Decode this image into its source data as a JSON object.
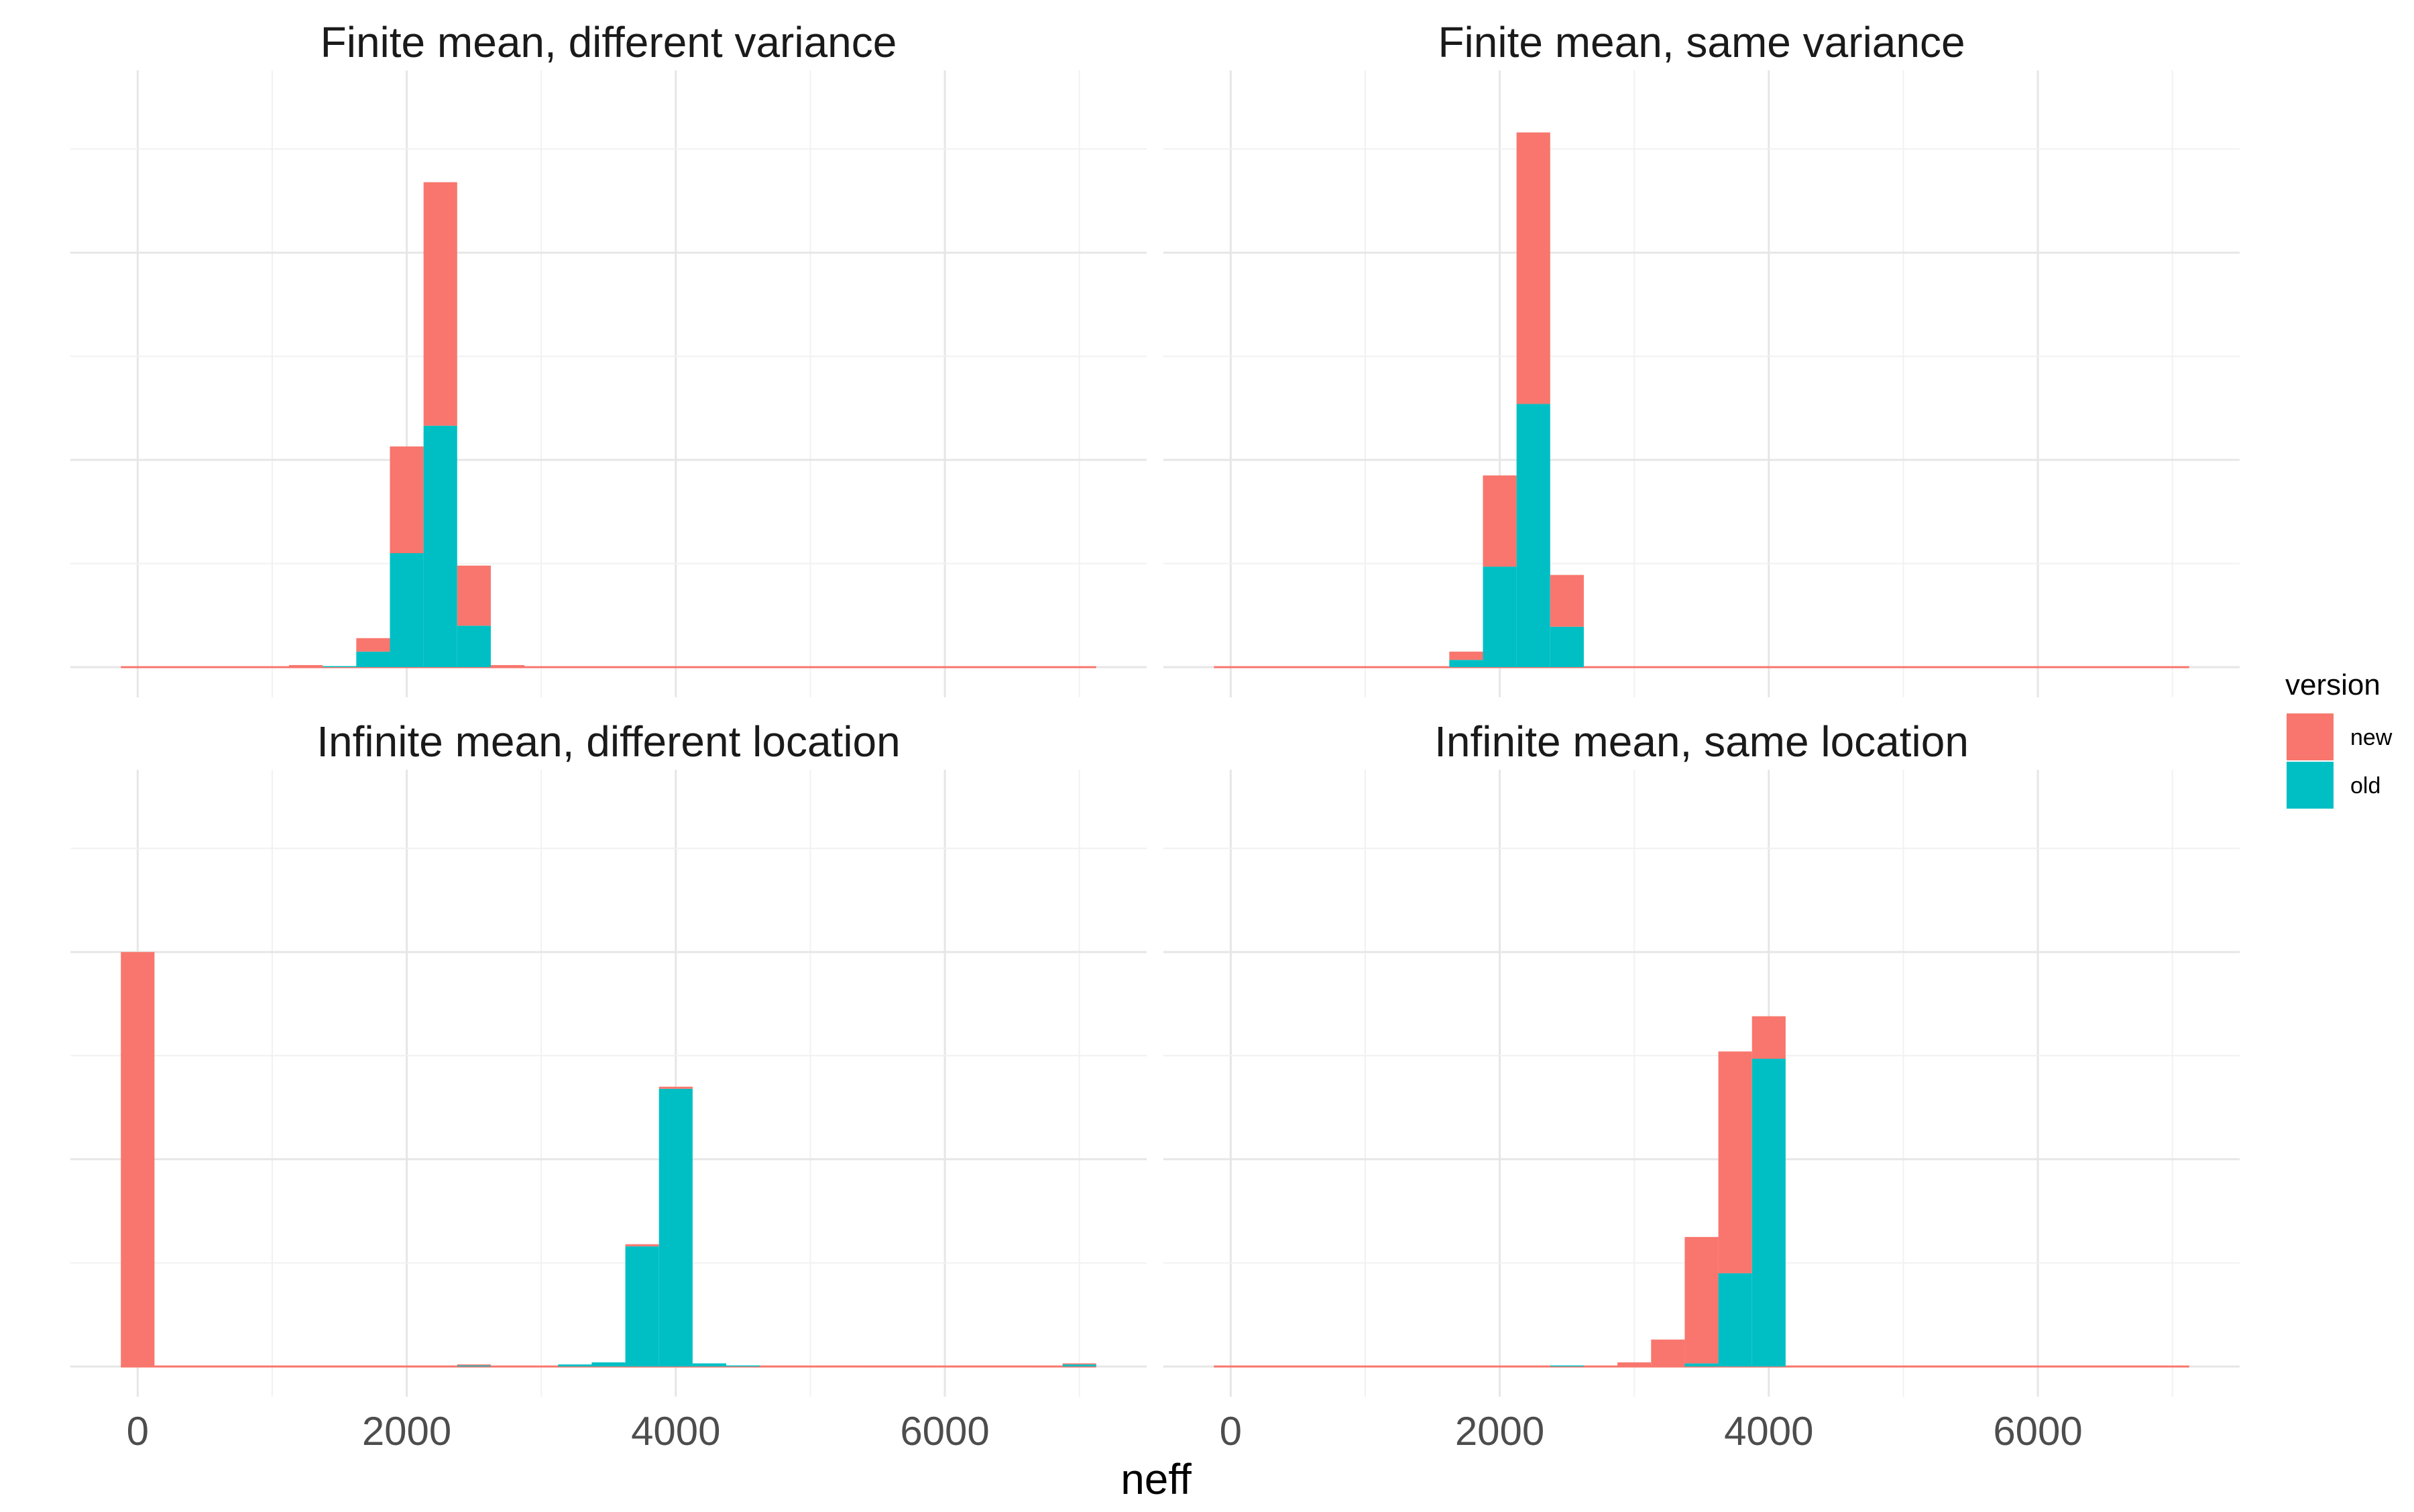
{
  "chart_data": {
    "type": "bar",
    "subtype": "stacked-histogram-facets",
    "xlabel": "neff",
    "ylabel": "",
    "xlim": [
      -500,
      7500
    ],
    "x_ticks": [
      0,
      2000,
      4000,
      6000
    ],
    "grid": true,
    "legend": {
      "title": "version",
      "placement": "right",
      "entries": [
        {
          "name": "new",
          "color": "#F8766D"
        },
        {
          "name": "old",
          "color": "#00BFC4"
        }
      ]
    },
    "bin_width": 250,
    "panels": [
      {
        "title": "Finite mean, different variance",
        "ylim": [
          0,
          0.55
        ],
        "bins": [
          {
            "x": 1250,
            "new": 0.002,
            "old": 0.0
          },
          {
            "x": 1500,
            "new": 0.0,
            "old": 0.001
          },
          {
            "x": 1750,
            "new": 0.013,
            "old": 0.015
          },
          {
            "x": 2000,
            "new": 0.103,
            "old": 0.11
          },
          {
            "x": 2250,
            "new": 0.235,
            "old": 0.233
          },
          {
            "x": 2500,
            "new": 0.058,
            "old": 0.04
          },
          {
            "x": 2750,
            "new": 0.002,
            "old": 0.0
          }
        ]
      },
      {
        "title": "Finite mean, same variance",
        "ylim": [
          0,
          0.55
        ],
        "bins": [
          {
            "x": 1750,
            "new": 0.008,
            "old": 0.007
          },
          {
            "x": 2000,
            "new": 0.088,
            "old": 0.097
          },
          {
            "x": 2250,
            "new": 0.262,
            "old": 0.254
          },
          {
            "x": 2500,
            "new": 0.05,
            "old": 0.039
          }
        ]
      },
      {
        "title": "Infinite mean, different location",
        "ylim": [
          0,
          0.55
        ],
        "bins": [
          {
            "x": 0,
            "new": 0.4,
            "old": 0.0
          },
          {
            "x": 2500,
            "new": 0.001,
            "old": 0.001
          },
          {
            "x": 3250,
            "new": 0.0,
            "old": 0.002
          },
          {
            "x": 3500,
            "new": 0.0,
            "old": 0.004
          },
          {
            "x": 3750,
            "new": 0.002,
            "old": 0.116
          },
          {
            "x": 4000,
            "new": 0.002,
            "old": 0.268
          },
          {
            "x": 4250,
            "new": 0.0,
            "old": 0.003
          },
          {
            "x": 4500,
            "new": 0.0,
            "old": 0.001
          },
          {
            "x": 5250,
            "new": 0.001,
            "old": 0.0
          },
          {
            "x": 6250,
            "new": 0.001,
            "old": 0.0
          },
          {
            "x": 6500,
            "new": 0.001,
            "old": 0.0
          },
          {
            "x": 7000,
            "new": 0.001,
            "old": 0.002
          }
        ]
      },
      {
        "title": "Infinite mean, same location",
        "ylim": [
          0,
          0.55
        ],
        "bins": [
          {
            "x": 2500,
            "new": 0.0,
            "old": 0.001
          },
          {
            "x": 3000,
            "new": 0.004,
            "old": 0.0
          },
          {
            "x": 3250,
            "new": 0.026,
            "old": 0.0
          },
          {
            "x": 3500,
            "new": 0.122,
            "old": 0.003
          },
          {
            "x": 3750,
            "new": 0.214,
            "old": 0.09
          },
          {
            "x": 4000,
            "new": 0.041,
            "old": 0.297
          },
          {
            "x": 4250,
            "new": 0.001,
            "old": 0.0
          },
          {
            "x": 4750,
            "new": 0.001,
            "old": 0.0
          }
        ]
      }
    ]
  }
}
